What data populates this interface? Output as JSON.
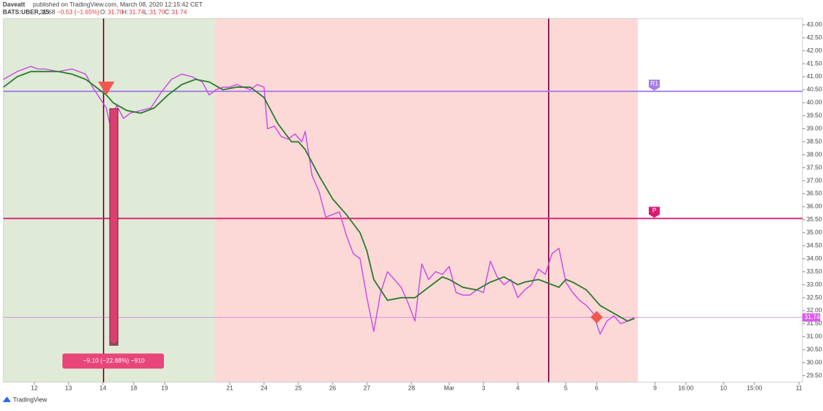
{
  "chart_data": {
    "type": "line",
    "header": {
      "publisher": "Daveatt",
      "published": "published on TradingView.com, March 08, 2020 12:15:42 CET",
      "symbol": "BATS:UBER, 15",
      "price": "31.68",
      "change": "−0.53 (−1.65%)",
      "o_label": "O:",
      "o": "31.70",
      "h_label": "H:",
      "h": "31.74",
      "l_label": "L:",
      "l": "31.70",
      "c_label": "C:",
      "c": "31.74"
    },
    "logo": "TradingView",
    "x": [
      0,
      4,
      8,
      10,
      12,
      16,
      20,
      24,
      26,
      28,
      30,
      31,
      33,
      35,
      37,
      40,
      43,
      46,
      49,
      52,
      55,
      58,
      60,
      62,
      64,
      66,
      68,
      70,
      72,
      74,
      76,
      77,
      79,
      81,
      83,
      85,
      87,
      88,
      90,
      92,
      94,
      96,
      98,
      100,
      102,
      104,
      106,
      108,
      110,
      112,
      114,
      116,
      118,
      120,
      122,
      124,
      126,
      128,
      130,
      132,
      134,
      136,
      138,
      140,
      142,
      144,
      146,
      148,
      150,
      152,
      154,
      156,
      158,
      160,
      162,
      164,
      166,
      168,
      170,
      172,
      174,
      176,
      178,
      180,
      182,
      184
    ],
    "series": [
      {
        "color": "#cc4ee6",
        "values": [
          40.9,
          41.2,
          41.4,
          41.3,
          41.3,
          41.2,
          41.3,
          41.1,
          40.6,
          40.2,
          39.8,
          39.2,
          39.9,
          39.4,
          39.6,
          39.7,
          39.8,
          40.4,
          40.9,
          41.1,
          41.0,
          40.8,
          40.3,
          40.5,
          40.6,
          40.6,
          40.7,
          40.6,
          40.5,
          40.7,
          40.6,
          39.0,
          39.1,
          38.7,
          38.6,
          38.8,
          38.5,
          38.9,
          37.2,
          36.6,
          35.6,
          35.7,
          35.8,
          34.9,
          34.2,
          34.0,
          32.5,
          31.2,
          32.7,
          33.5,
          33.2,
          32.9,
          32.3,
          31.6,
          33.8,
          33.2,
          33.5,
          33.4,
          33.7,
          32.7,
          32.6,
          32.6,
          32.8,
          32.7,
          33.9,
          33.3,
          33.0,
          33.2,
          32.5,
          32.8,
          33.0,
          33.6,
          33.4,
          34.2,
          34.4,
          33.1,
          32.7,
          32.4,
          32.2,
          31.9,
          31.1,
          31.6,
          31.8,
          31.5,
          31.6,
          31.74
        ]
      }
    ],
    "ma": {
      "color": "#2e7d32",
      "x": [
        0,
        4,
        8,
        12,
        16,
        20,
        24,
        28,
        30,
        32,
        36,
        40,
        44,
        48,
        52,
        56,
        60,
        64,
        68,
        72,
        76,
        80,
        84,
        86,
        88,
        92,
        96,
        100,
        104,
        106,
        108,
        112,
        116,
        120,
        124,
        128,
        130,
        134,
        138,
        142,
        146,
        150,
        152,
        156,
        160,
        162,
        164,
        166,
        170,
        174,
        178,
        182,
        184
      ],
      "values": [
        40.6,
        41.0,
        41.2,
        41.2,
        41.2,
        41.1,
        40.9,
        40.5,
        40.3,
        40.0,
        39.7,
        39.6,
        39.8,
        40.3,
        40.7,
        40.9,
        40.8,
        40.5,
        40.6,
        40.6,
        40.2,
        39.2,
        38.5,
        38.5,
        38.2,
        37.2,
        36.3,
        35.7,
        35.0,
        34.3,
        33.2,
        32.4,
        32.5,
        32.5,
        32.9,
        33.3,
        33.2,
        32.9,
        32.8,
        33.1,
        33.3,
        33.0,
        33.1,
        33.2,
        33.0,
        32.9,
        33.2,
        33.1,
        32.8,
        32.2,
        31.9,
        31.6,
        31.7
      ]
    },
    "xlim": [
      0,
      233
    ],
    "ylim": [
      29.25,
      43.24
    ],
    "xticks": [
      {
        "value": 9,
        "label": "12"
      },
      {
        "value": 19,
        "label": "13"
      },
      {
        "value": 29,
        "label": "14"
      },
      {
        "value": 38,
        "label": "18"
      },
      {
        "value": 47,
        "label": "19"
      },
      {
        "value": 66,
        "label": "21"
      },
      {
        "value": 76,
        "label": "24"
      },
      {
        "value": 86,
        "label": "25"
      },
      {
        "value": 96,
        "label": "26"
      },
      {
        "value": 106,
        "label": "27"
      },
      {
        "value": 119,
        "label": "28"
      },
      {
        "value": 130,
        "label": "Mar"
      },
      {
        "value": 140,
        "label": "3"
      },
      {
        "value": 150,
        "label": "4"
      },
      {
        "value": 164,
        "label": "5"
      },
      {
        "value": 173,
        "label": "6"
      },
      {
        "value": 190,
        "label": "9"
      },
      {
        "value": 199,
        "label": "16:00"
      },
      {
        "value": 210,
        "label": "10"
      },
      {
        "value": 219,
        "label": "15:00"
      },
      {
        "value": 232,
        "label": "11"
      }
    ],
    "yticks": [
      {
        "value": 29.5,
        "label": "29.50"
      },
      {
        "value": 30,
        "label": "30.00"
      },
      {
        "value": 30.5,
        "label": "30.50"
      },
      {
        "value": 31,
        "label": "31.00"
      },
      {
        "value": 31.5,
        "label": "31.50"
      },
      {
        "value": 32,
        "label": "32.00"
      },
      {
        "value": 32.5,
        "label": "32.50"
      },
      {
        "value": 33,
        "label": "33.00"
      },
      {
        "value": 33.5,
        "label": "33.50"
      },
      {
        "value": 34,
        "label": "34.00"
      },
      {
        "value": 34.5,
        "label": "34.50"
      },
      {
        "value": 35,
        "label": "35.00"
      },
      {
        "value": 35.5,
        "label": "35.50"
      },
      {
        "value": 36,
        "label": "36.00"
      },
      {
        "value": 36.5,
        "label": "36.50"
      },
      {
        "value": 37,
        "label": "37.00"
      },
      {
        "value": 37.5,
        "label": "37.50"
      },
      {
        "value": 38,
        "label": "38.00"
      },
      {
        "value": 38.5,
        "label": "38.50"
      },
      {
        "value": 39,
        "label": "39.00"
      },
      {
        "value": 39.5,
        "label": "39.50"
      },
      {
        "value": 40,
        "label": "40.00"
      },
      {
        "value": 40.5,
        "label": "40.50"
      },
      {
        "value": 41,
        "label": "41.00"
      },
      {
        "value": 41.5,
        "label": "41.50"
      },
      {
        "value": 42,
        "label": "42.00"
      },
      {
        "value": 42.5,
        "label": "42.50"
      },
      {
        "value": 43,
        "label": "43.00"
      }
    ],
    "shading": [
      {
        "from": 0,
        "to": 61.6,
        "color": "#dfebd6"
      },
      {
        "from": 61.6,
        "to": 185,
        "color": "#fcd9d7"
      }
    ],
    "vlines": [
      29.2,
      159
    ],
    "levels": [
      {
        "label": "R1",
        "value": 40.44,
        "color": "#a77de6"
      },
      {
        "label": "P",
        "value": 35.55,
        "color": "#d81b72"
      }
    ],
    "last_price": 31.74,
    "measure": {
      "x": 32.2,
      "from": 39.77,
      "to": 30.67,
      "label": "−9.10 (−22.88%) −910"
    },
    "sell_marker": [
      30,
      40.55
    ],
    "diamond_marker": [
      173,
      31.75
    ]
  }
}
